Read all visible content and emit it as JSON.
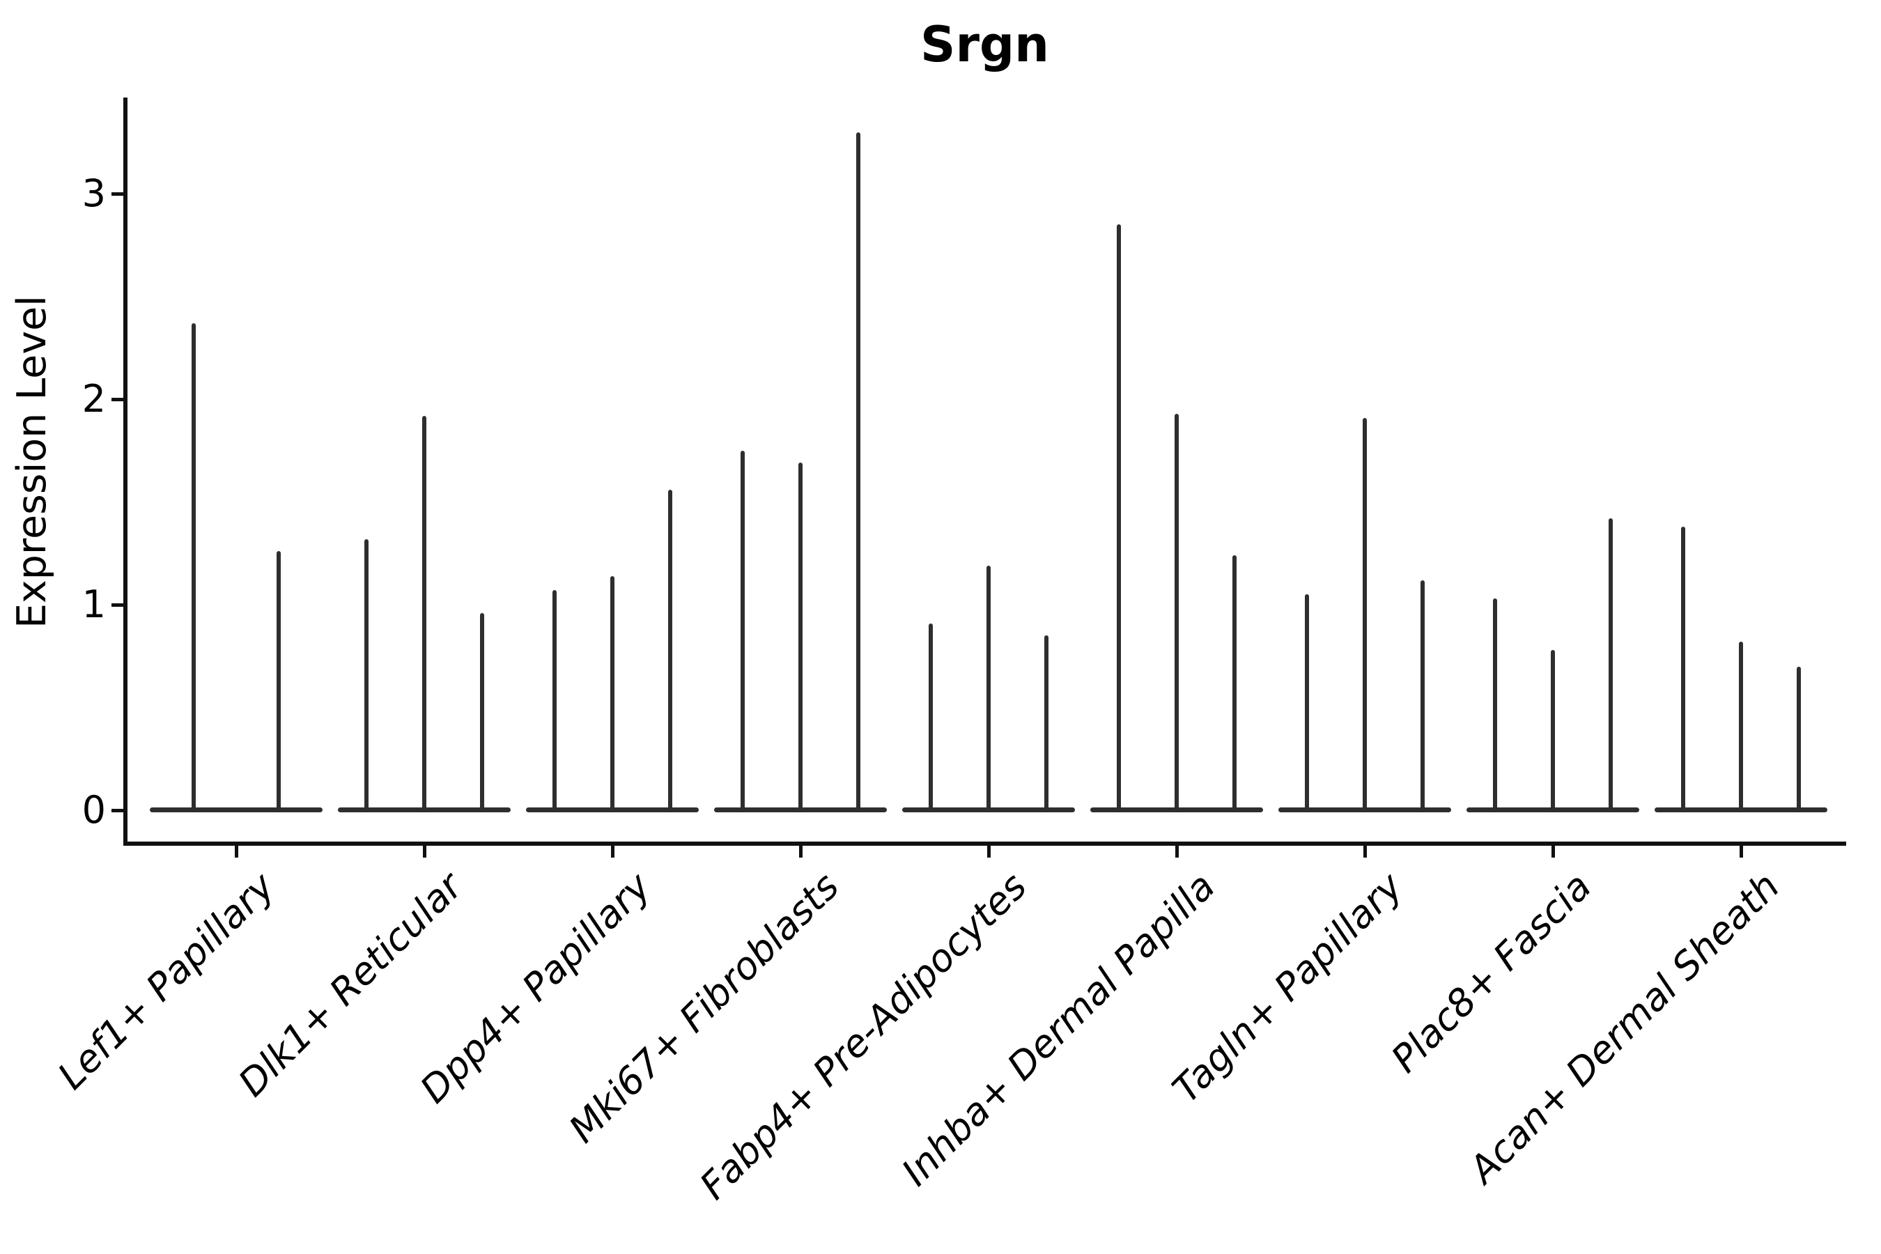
{
  "title": "Srgn",
  "ylabel": "Expression Level",
  "chart_data": {
    "type": "violin",
    "title": "Srgn",
    "xlabel": "",
    "ylabel": "Expression Level",
    "ylim": [
      -0.17,
      3.45
    ],
    "yticks": [
      0,
      1,
      2,
      3
    ],
    "grid": false,
    "legend": "none",
    "style": "thin black violins flattened at 0 with narrow peak spikes, despined top/right, italic rotated x labels",
    "categories": [
      "Lef1+ Papillary",
      "Dlk1+ Reticular",
      "Dpp4+ Papillary",
      "Mki67+ Fibroblasts",
      "Fabp4+ Pre-Adipocytes",
      "Inhba+ Dermal Papilla",
      "Tagln+ Papillary",
      "Plac8+ Fascia",
      "Acan+ Dermal Sheath"
    ],
    "series": [
      {
        "category": "Lef1+ Papillary",
        "violin_max_values": [
          2.37,
          1.26
        ]
      },
      {
        "category": "Dlk1+ Reticular",
        "violin_max_values": [
          1.32,
          1.92,
          0.96
        ]
      },
      {
        "category": "Dpp4+ Papillary",
        "violin_max_values": [
          1.07,
          1.14,
          1.56
        ]
      },
      {
        "category": "Mki67+ Fibroblasts",
        "violin_max_values": [
          1.75,
          1.69,
          3.3
        ]
      },
      {
        "category": "Fabp4+ Pre-Adipocytes",
        "violin_max_values": [
          0.91,
          1.19,
          0.85
        ]
      },
      {
        "category": "Inhba+ Dermal Papilla",
        "violin_max_values": [
          2.85,
          1.93,
          1.24
        ]
      },
      {
        "category": "Tagln+ Papillary",
        "violin_max_values": [
          1.05,
          1.91,
          1.12
        ]
      },
      {
        "category": "Plac8+ Fascia",
        "violin_max_values": [
          1.03,
          0.78,
          1.42
        ]
      },
      {
        "category": "Acan+ Dermal Sheath",
        "violin_max_values": [
          1.38,
          0.82,
          0.7
        ]
      }
    ],
    "colors": {
      "violin": "#2e2e2e",
      "spine": "#111111",
      "text": "#000000",
      "background": "#ffffff"
    }
  }
}
